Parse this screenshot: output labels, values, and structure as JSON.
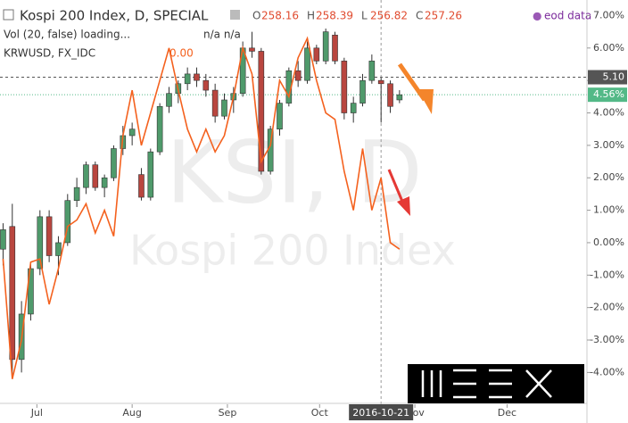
{
  "header": {
    "title": "Kospi 200 Index, D, SPECIAL",
    "ohlc": [
      {
        "label": "O",
        "value": 258.16
      },
      {
        "label": "H",
        "value": 258.39
      },
      {
        "label": "L",
        "value": 256.82
      },
      {
        "label": "C",
        "value": 257.26
      }
    ],
    "source": "eod data"
  },
  "indicators": [
    {
      "name": "Vol (20, false) loading...",
      "value": "n/a n/a"
    },
    {
      "name": "KRWUSD, FX_IDC",
      "value": "0.00"
    }
  ],
  "chart_data": {
    "type": "candlestick",
    "watermark": [
      "KSI, D",
      "Kospi 200 Index"
    ],
    "x": [
      "2016-06-20",
      "2016-06-23",
      "2016-06-26",
      "2016-06-29",
      "2016-07-02",
      "2016-07-05",
      "2016-07-08",
      "2016-07-11",
      "2016-07-14",
      "2016-07-17",
      "2016-07-20",
      "2016-07-23",
      "2016-07-26",
      "2016-07-29",
      "2016-08-01",
      "2016-08-04",
      "2016-08-07",
      "2016-08-10",
      "2016-08-13",
      "2016-08-16",
      "2016-08-19",
      "2016-08-22",
      "2016-08-25",
      "2016-08-28",
      "2016-08-31",
      "2016-09-03",
      "2016-09-06",
      "2016-09-09",
      "2016-09-12",
      "2016-09-15",
      "2016-09-18",
      "2016-09-21",
      "2016-09-24",
      "2016-09-27",
      "2016-09-30",
      "2016-10-03",
      "2016-10-06",
      "2016-10-09",
      "2016-10-12",
      "2016-10-15",
      "2016-10-18",
      "2016-10-21",
      "2016-10-24",
      "2016-10-27"
    ],
    "series": [
      {
        "name": "Kospi 200 Index",
        "up_color": "#4f9a6b",
        "down_color": "#b9463f",
        "values": [
          [
            -0.2,
            0.6,
            -0.7,
            0.4
          ],
          [
            0.5,
            1.2,
            -4.2,
            -3.6
          ],
          [
            -3.6,
            -1.8,
            -4.0,
            -2.2
          ],
          [
            -2.2,
            -0.6,
            -2.4,
            -0.8
          ],
          [
            -0.8,
            1.0,
            -1.0,
            0.8
          ],
          [
            0.8,
            1.0,
            -0.6,
            -0.4
          ],
          [
            -0.4,
            0.2,
            -1.0,
            0.0
          ],
          [
            0.0,
            1.5,
            -0.1,
            1.3
          ],
          [
            1.3,
            2.0,
            1.1,
            1.7
          ],
          [
            1.7,
            2.5,
            1.5,
            2.4
          ],
          [
            2.4,
            2.5,
            1.6,
            1.7
          ],
          [
            1.7,
            2.1,
            1.4,
            2.0
          ],
          [
            2.0,
            3.0,
            1.9,
            2.9
          ],
          [
            2.9,
            3.6,
            2.7,
            3.3
          ],
          [
            3.3,
            3.7,
            3.0,
            3.5
          ],
          [
            2.1,
            2.3,
            1.3,
            1.4
          ],
          [
            1.4,
            2.9,
            1.3,
            2.8
          ],
          [
            2.8,
            4.3,
            2.7,
            4.2
          ],
          [
            4.2,
            4.8,
            4.0,
            4.6
          ],
          [
            4.6,
            5.0,
            4.3,
            4.9
          ],
          [
            4.9,
            5.4,
            4.7,
            5.2
          ],
          [
            5.2,
            5.4,
            4.8,
            5.0
          ],
          [
            5.0,
            5.2,
            4.5,
            4.7
          ],
          [
            4.7,
            4.9,
            3.7,
            3.9
          ],
          [
            3.9,
            4.6,
            3.8,
            4.4
          ],
          [
            4.4,
            4.8,
            4.0,
            4.6
          ],
          [
            4.6,
            6.2,
            4.5,
            6.0
          ],
          [
            6.0,
            6.5,
            5.7,
            5.9
          ],
          [
            5.9,
            6.0,
            2.1,
            2.2
          ],
          [
            2.2,
            3.6,
            2.1,
            3.5
          ],
          [
            3.5,
            4.4,
            3.3,
            4.3
          ],
          [
            4.3,
            5.4,
            4.2,
            5.3
          ],
          [
            5.3,
            5.6,
            4.8,
            5.0
          ],
          [
            5.0,
            6.2,
            4.9,
            6.0
          ],
          [
            6.0,
            6.1,
            5.5,
            5.6
          ],
          [
            5.6,
            6.6,
            5.5,
            6.5
          ],
          [
            6.4,
            6.5,
            5.5,
            5.6
          ],
          [
            5.6,
            5.7,
            3.8,
            4.0
          ],
          [
            4.0,
            4.5,
            3.7,
            4.3
          ],
          [
            4.3,
            5.2,
            4.2,
            5.0
          ],
          [
            5.0,
            5.8,
            4.9,
            5.6
          ],
          [
            5.0,
            5.1,
            3.7,
            4.9
          ],
          [
            4.9,
            5.0,
            4.0,
            4.2
          ],
          [
            4.4,
            4.7,
            4.3,
            4.56
          ]
        ]
      },
      {
        "name": "KRWUSD",
        "type": "line",
        "color": "#f4611e",
        "values": [
          -0.5,
          -4.2,
          -3.0,
          -0.6,
          -0.5,
          -1.9,
          -0.8,
          0.5,
          0.7,
          1.2,
          0.3,
          1.0,
          0.2,
          3.3,
          4.7,
          3.0,
          4.0,
          5.0,
          6.0,
          4.7,
          3.5,
          2.8,
          3.5,
          2.8,
          3.3,
          4.5,
          6.0,
          5.2,
          2.5,
          3.0,
          5.0,
          4.5,
          5.7,
          6.3,
          5.0,
          4.0,
          3.8,
          2.2,
          1.0,
          2.9,
          1.0,
          2.0,
          0.0,
          -0.2
        ]
      }
    ],
    "xlim": [
      "2016-06-19",
      "2016-12-27"
    ],
    "xticks": [
      {
        "value": "2016-07-01",
        "label": "Jul"
      },
      {
        "value": "2016-08-01",
        "label": "Aug"
      },
      {
        "value": "2016-09-01",
        "label": "Sep"
      },
      {
        "value": "2016-10-01",
        "label": "Oct"
      },
      {
        "value": "2016-11-01",
        "label": "Nov"
      },
      {
        "value": "2016-12-01",
        "label": "Dec"
      }
    ],
    "ylim": [
      -4.98,
      7.48
    ],
    "yticks": [
      {
        "value": 7,
        "label": "7.00%"
      },
      {
        "value": 6,
        "label": "6.00%"
      },
      {
        "value": 5,
        "label": "5.00%"
      },
      {
        "value": 4,
        "label": "4.00%"
      },
      {
        "value": 3,
        "label": "3.00%"
      },
      {
        "value": 2,
        "label": "2.00%"
      },
      {
        "value": 1,
        "label": "1.00%"
      },
      {
        "value": 0,
        "label": "0.00%"
      },
      {
        "value": -1,
        "label": "-1.00%"
      },
      {
        "value": -2,
        "label": "-2.00%"
      },
      {
        "value": -3,
        "label": "-3.00%"
      },
      {
        "value": -4,
        "label": "-4.00%"
      }
    ],
    "crosshair": {
      "x": "2016-10-21",
      "label": "2016-10-21"
    },
    "price_lines": [
      {
        "value": 5.1,
        "label": "5.10",
        "color": "#555555"
      },
      {
        "value": 4.56,
        "label": "4.56%",
        "color": "#53b987"
      }
    ]
  }
}
